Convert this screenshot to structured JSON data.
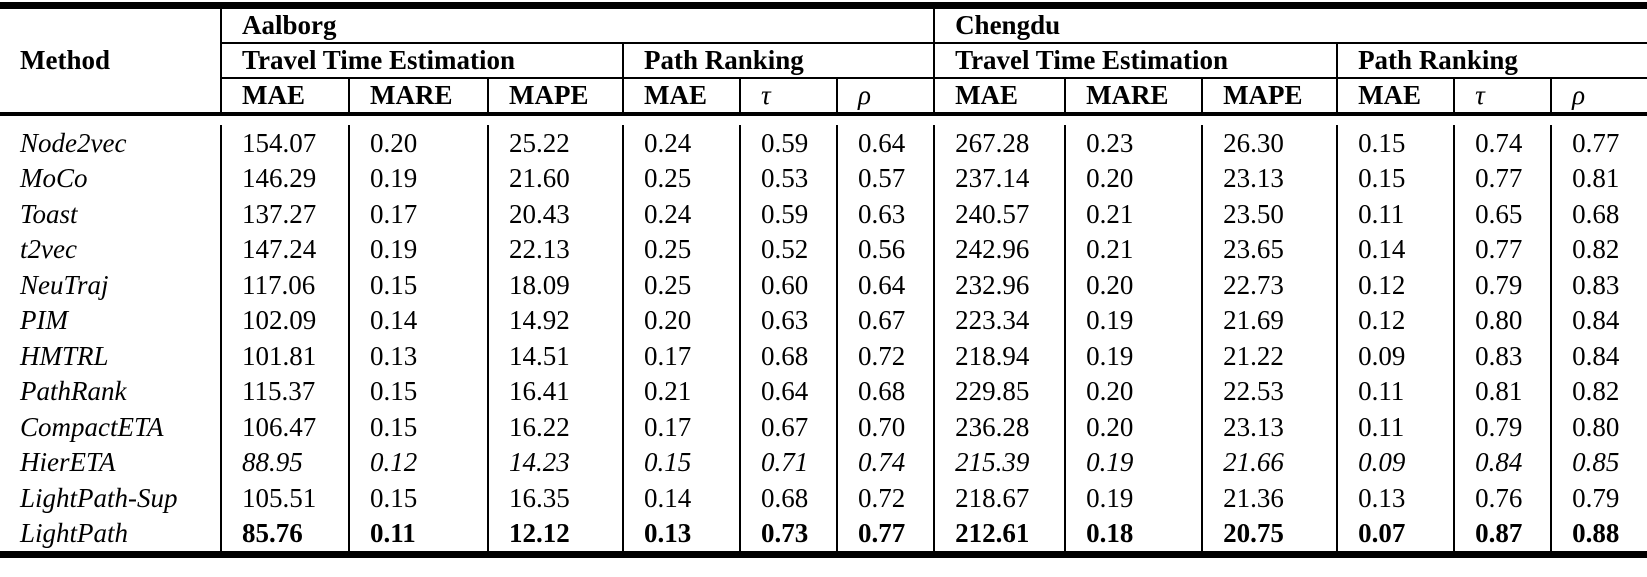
{
  "table": {
    "method_header": "Method",
    "datasets": [
      {
        "name": "Aalborg",
        "tasks": [
          {
            "name": "Travel Time Estimation",
            "metrics": [
              "MAE",
              "MARE",
              "MAPE"
            ]
          },
          {
            "name": "Path Ranking",
            "metrics": [
              "MAE",
              "τ",
              "ρ"
            ]
          }
        ]
      },
      {
        "name": "Chengdu",
        "tasks": [
          {
            "name": "Travel Time Estimation",
            "metrics": [
              "MAE",
              "MARE",
              "MAPE"
            ]
          },
          {
            "name": "Path Ranking",
            "metrics": [
              "MAE",
              "τ",
              "ρ"
            ]
          }
        ]
      }
    ],
    "rows": [
      {
        "method": "Node2vec",
        "values": [
          "154.07",
          "0.20",
          "25.22",
          "0.24",
          "0.59",
          "0.64",
          "267.28",
          "0.23",
          "26.30",
          "0.15",
          "0.74",
          "0.77"
        ]
      },
      {
        "method": "MoCo",
        "values": [
          "146.29",
          "0.19",
          "21.60",
          "0.25",
          "0.53",
          "0.57",
          "237.14",
          "0.20",
          "23.13",
          "0.15",
          "0.77",
          "0.81"
        ]
      },
      {
        "method": "Toast",
        "values": [
          "137.27",
          "0.17",
          "20.43",
          "0.24",
          "0.59",
          "0.63",
          "240.57",
          "0.21",
          "23.50",
          "0.11",
          "0.65",
          "0.68"
        ]
      },
      {
        "method": "t2vec",
        "values": [
          "147.24",
          "0.19",
          "22.13",
          "0.25",
          "0.52",
          "0.56",
          "242.96",
          "0.21",
          "23.65",
          "0.14",
          "0.77",
          "0.82"
        ]
      },
      {
        "method": "NeuTraj",
        "values": [
          "117.06",
          "0.15",
          "18.09",
          "0.25",
          "0.60",
          "0.64",
          "232.96",
          "0.20",
          "22.73",
          "0.12",
          "0.79",
          "0.83"
        ]
      },
      {
        "method": "PIM",
        "values": [
          "102.09",
          "0.14",
          "14.92",
          "0.20",
          "0.63",
          "0.67",
          "223.34",
          "0.19",
          "21.69",
          "0.12",
          "0.80",
          "0.84"
        ]
      },
      {
        "method": "HMTRL",
        "values": [
          "101.81",
          "0.13",
          "14.51",
          "0.17",
          "0.68",
          "0.72",
          "218.94",
          "0.19",
          "21.22",
          "0.09",
          "0.83",
          "0.84"
        ]
      },
      {
        "method": "PathRank",
        "values": [
          "115.37",
          "0.15",
          "16.41",
          "0.21",
          "0.64",
          "0.68",
          "229.85",
          "0.20",
          "22.53",
          "0.11",
          "0.81",
          "0.82"
        ]
      },
      {
        "method": "CompactETA",
        "values": [
          "106.47",
          "0.15",
          "16.22",
          "0.17",
          "0.67",
          "0.70",
          "236.28",
          "0.20",
          "23.13",
          "0.11",
          "0.79",
          "0.80"
        ]
      },
      {
        "method": "HierETA",
        "emphasis": "italic",
        "values": [
          "88.95",
          "0.12",
          "14.23",
          "0.15",
          "0.71",
          "0.74",
          "215.39",
          "0.19",
          "21.66",
          "0.09",
          "0.84",
          "0.85"
        ]
      },
      {
        "method": "LightPath-Sup",
        "values": [
          "105.51",
          "0.15",
          "16.35",
          "0.14",
          "0.68",
          "0.72",
          "218.67",
          "0.19",
          "21.36",
          "0.13",
          "0.76",
          "0.79"
        ]
      },
      {
        "method": "LightPath",
        "emphasis": "bold",
        "values": [
          "85.76",
          "0.11",
          "12.12",
          "0.13",
          "0.73",
          "0.77",
          "212.61",
          "0.18",
          "20.75",
          "0.07",
          "0.87",
          "0.88"
        ]
      }
    ]
  }
}
